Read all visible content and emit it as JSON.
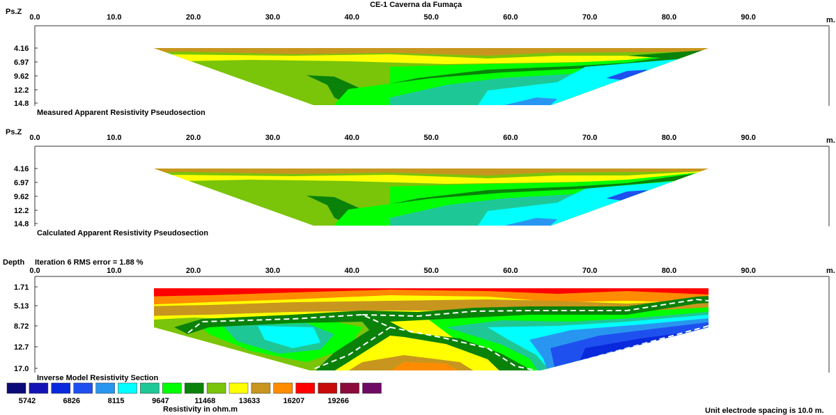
{
  "title": "CE-1 Caverna da Fumaça",
  "x_ticks": [
    "0.0",
    "10.0",
    "20.0",
    "30.0",
    "40.0",
    "50.0",
    "60.0",
    "70.0",
    "80.0",
    "90.0"
  ],
  "x_unit": "m.",
  "panels": [
    {
      "axis_label": "Ps.Z",
      "depth_ticks": [
        "4.16",
        "6.97",
        "9.62",
        "12.2",
        "14.8"
      ],
      "caption": "Measured Apparent Resistivity Pseudosection"
    },
    {
      "axis_label": "Ps.Z",
      "depth_ticks": [
        "4.16",
        "6.97",
        "9.62",
        "12.2",
        "14.8"
      ],
      "caption": "Calculated Apparent Resistivity Pseudosection"
    },
    {
      "axis_label": "Depth",
      "depth_ticks": [
        "1.71",
        "5.13",
        "8.72",
        "12.7",
        "17.0"
      ],
      "caption": "Inverse Model Resistivity Section",
      "iteration_note": "Iteration 6 RMS error = 1.88 %"
    }
  ],
  "legend": {
    "colors": [
      "#0a0a78",
      "#1414b4",
      "#0a28dc",
      "#1e50f0",
      "#2896f0",
      "#00ffff",
      "#1ec896",
      "#00ff00",
      "#0a820a",
      "#7ac40a",
      "#ffff00",
      "#c8961e",
      "#ff8c00",
      "#ff0000",
      "#c80a0a",
      "#8c0a3c",
      "#6e0a64"
    ],
    "labels": [
      "5742",
      "6826",
      "8115",
      "9647",
      "11468",
      "13633",
      "16207",
      "19266"
    ],
    "unit_label": "Resistivity in ohm.m"
  },
  "footer_note": "Unit electrode spacing is 10.0 m.",
  "chart_data": [
    {
      "type": "heatmap",
      "title": "Measured Apparent Resistivity Pseudosection",
      "xlabel": "m.",
      "ylabel": "Ps.Z",
      "xlim": [
        0,
        100
      ],
      "ylim": [
        4.16,
        14.8
      ]
    },
    {
      "type": "heatmap",
      "title": "Calculated Apparent Resistivity Pseudosection",
      "xlabel": "m.",
      "ylabel": "Ps.Z",
      "xlim": [
        0,
        100
      ],
      "ylim": [
        4.16,
        14.8
      ]
    },
    {
      "type": "heatmap",
      "title": "Inverse Model Resistivity Section",
      "xlabel": "m.",
      "ylabel": "Depth",
      "xlim": [
        0,
        100
      ],
      "ylim": [
        1.71,
        17.0
      ],
      "note": "Iteration 6 RMS error = 1.88 %"
    }
  ]
}
